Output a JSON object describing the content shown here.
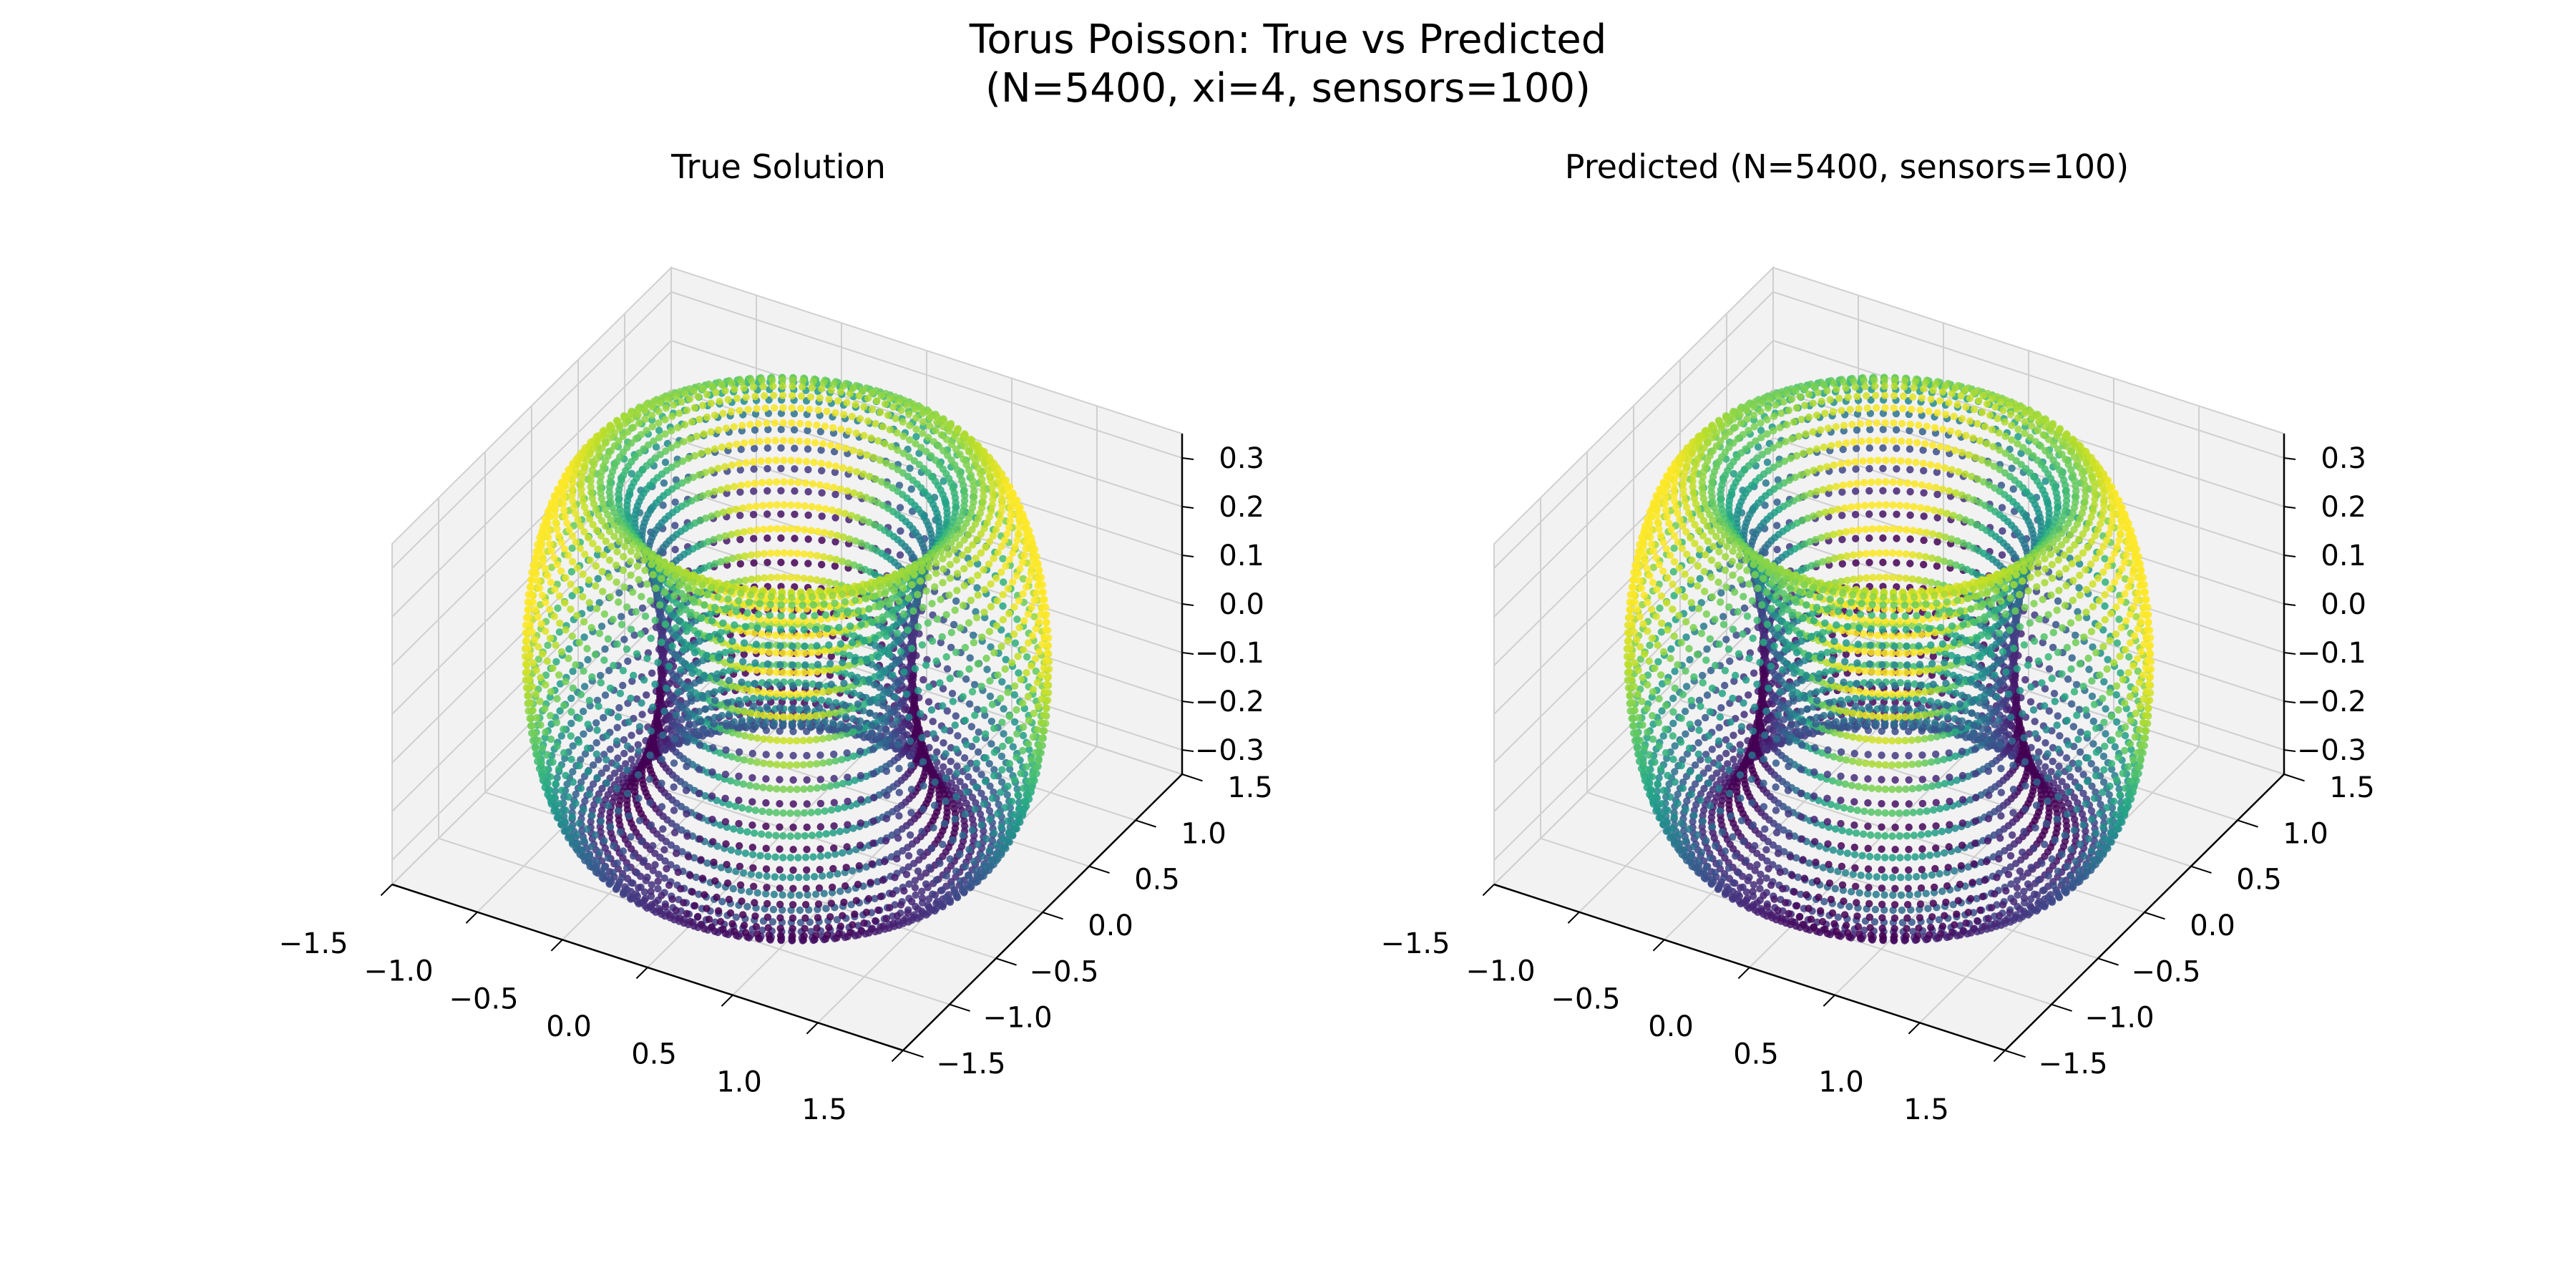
{
  "figure": {
    "title_line1": "Torus Poisson: True vs Predicted",
    "title_line2": "(N=5400, xi=4, sensors=100)"
  },
  "chart_data": [
    {
      "type": "scatter",
      "projection": "3d",
      "title": "True Solution",
      "surface": "torus",
      "colormap": "viridis",
      "xlim": [
        -1.5,
        1.5
      ],
      "ylim": [
        -1.5,
        1.5
      ],
      "zlim": [
        -0.35,
        0.35
      ],
      "x_ticks": [
        "−1.5",
        "−1.0",
        "−0.5",
        "0.0",
        "0.5",
        "1.0",
        "1.5"
      ],
      "y_ticks": [
        "−1.5",
        "−1.0",
        "−0.5",
        "0.0",
        "0.5",
        "1.0",
        "1.5"
      ],
      "z_ticks": [
        "−0.3",
        "−0.2",
        "−0.1",
        "0.0",
        "0.1",
        "0.2",
        "0.3"
      ],
      "grid": true
    },
    {
      "type": "scatter",
      "projection": "3d",
      "title": "Predicted (N=5400, sensors=100)",
      "surface": "torus",
      "colormap": "viridis",
      "xlim": [
        -1.5,
        1.5
      ],
      "ylim": [
        -1.5,
        1.5
      ],
      "zlim": [
        -0.35,
        0.35
      ],
      "x_ticks": [
        "−1.5",
        "−1.0",
        "−0.5",
        "0.0",
        "0.5",
        "1.0",
        "1.5"
      ],
      "y_ticks": [
        "−1.5",
        "−1.0",
        "−0.5",
        "0.0",
        "0.5",
        "1.0",
        "1.5"
      ],
      "z_ticks": [
        "−0.3",
        "−0.2",
        "−0.1",
        "0.0",
        "0.1",
        "0.2",
        "0.3"
      ],
      "grid": true
    }
  ]
}
